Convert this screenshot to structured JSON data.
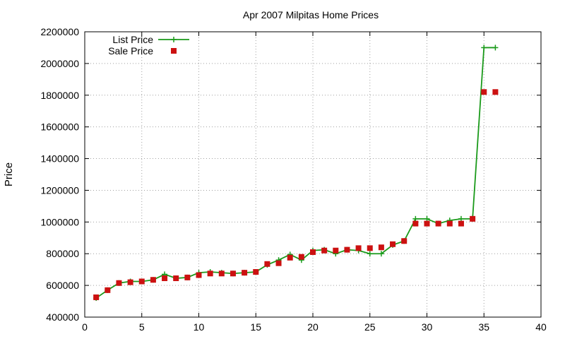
{
  "chart_data": {
    "type": "line",
    "title": "Apr 2007 Milpitas Home Prices",
    "xlabel": "",
    "ylabel": "Price",
    "xlim": [
      0,
      40
    ],
    "ylim": [
      400000,
      2200000
    ],
    "x_ticks": [
      0,
      5,
      10,
      15,
      20,
      25,
      30,
      35,
      40
    ],
    "y_ticks": [
      400000,
      600000,
      800000,
      1000000,
      1200000,
      1400000,
      1600000,
      1800000,
      2000000,
      2200000
    ],
    "grid": true,
    "legend_position": "top-left",
    "series": [
      {
        "name": "List Price",
        "style": "line-with-plus",
        "color": "#1a9a1a",
        "x": [
          1,
          2,
          3,
          4,
          5,
          6,
          7,
          8,
          9,
          10,
          11,
          12,
          13,
          14,
          15,
          16,
          17,
          18,
          19,
          20,
          21,
          22,
          23,
          24,
          25,
          26,
          27,
          28,
          29,
          30,
          31,
          32,
          33,
          34,
          35,
          36
        ],
        "values": [
          520000,
          570000,
          615000,
          625000,
          625000,
          635000,
          670000,
          645000,
          650000,
          680000,
          685000,
          680000,
          675000,
          680000,
          685000,
          730000,
          760000,
          795000,
          760000,
          820000,
          825000,
          800000,
          825000,
          820000,
          800000,
          800000,
          855000,
          880000,
          1020000,
          1020000,
          990000,
          1010000,
          1020000,
          1020000,
          2100000,
          2100000
        ]
      },
      {
        "name": "Sale Price",
        "style": "square-markers",
        "color": "#cc1111",
        "x": [
          1,
          2,
          3,
          4,
          5,
          6,
          7,
          8,
          9,
          10,
          11,
          12,
          13,
          14,
          15,
          16,
          17,
          18,
          19,
          20,
          21,
          22,
          23,
          24,
          25,
          26,
          27,
          28,
          29,
          30,
          31,
          32,
          33,
          34,
          35,
          36
        ],
        "values": [
          525000,
          570000,
          615000,
          620000,
          625000,
          635000,
          645000,
          645000,
          650000,
          665000,
          675000,
          675000,
          675000,
          680000,
          685000,
          735000,
          740000,
          775000,
          780000,
          810000,
          820000,
          820000,
          825000,
          835000,
          835000,
          840000,
          860000,
          880000,
          990000,
          990000,
          990000,
          990000,
          990000,
          1020000,
          1820000,
          1820000
        ]
      }
    ]
  }
}
